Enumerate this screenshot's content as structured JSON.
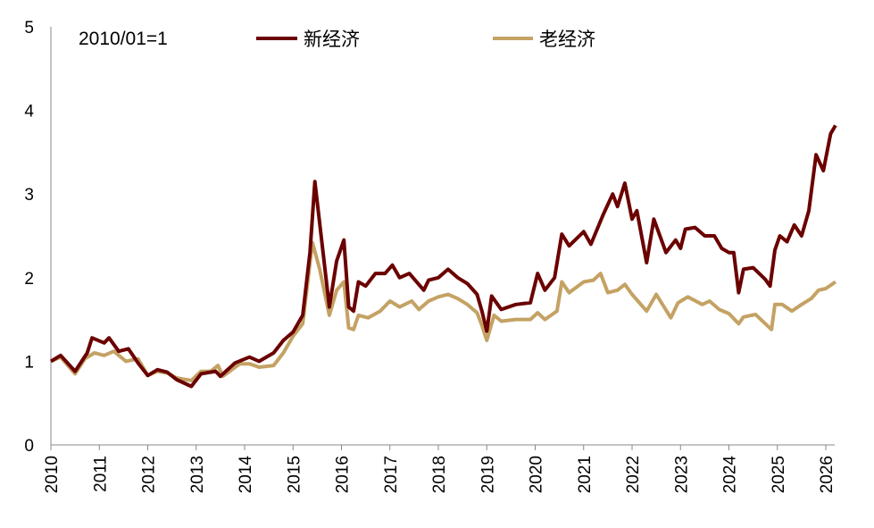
{
  "chart_data": {
    "type": "line",
    "title": "",
    "annotation": "2010/01=1",
    "xlabel": "",
    "ylabel": "",
    "xlim": [
      2010,
      2026.2
    ],
    "ylim": [
      0,
      5
    ],
    "yticks": [
      0,
      1,
      2,
      3,
      4,
      5
    ],
    "xticks": [
      "2010",
      "2011",
      "2012",
      "2013",
      "2014",
      "2015",
      "2016",
      "2017",
      "2018",
      "2019",
      "2020",
      "2021",
      "2022",
      "2023",
      "2024",
      "2025",
      "2026"
    ],
    "grid": false,
    "legend_position": "top",
    "series": [
      {
        "name": "新经济",
        "color": "#6b0000",
        "x": [
          2010.0,
          2010.2,
          2010.5,
          2010.75,
          2010.85,
          2011.1,
          2011.2,
          2011.4,
          2011.6,
          2011.8,
          2012.0,
          2012.2,
          2012.4,
          2012.6,
          2012.9,
          2013.1,
          2013.4,
          2013.5,
          2013.8,
          2014.1,
          2014.3,
          2014.6,
          2014.8,
          2015.0,
          2015.2,
          2015.35,
          2015.45,
          2015.6,
          2015.75,
          2015.9,
          2016.05,
          2016.15,
          2016.25,
          2016.35,
          2016.5,
          2016.7,
          2016.9,
          2017.05,
          2017.2,
          2017.4,
          2017.7,
          2017.8,
          2018.0,
          2018.2,
          2018.4,
          2018.6,
          2018.8,
          2018.9,
          2019.0,
          2019.1,
          2019.3,
          2019.6,
          2019.9,
          2020.05,
          2020.2,
          2020.4,
          2020.55,
          2020.7,
          2021.0,
          2021.15,
          2021.4,
          2021.6,
          2021.7,
          2021.85,
          2022.0,
          2022.1,
          2022.3,
          2022.45,
          2022.7,
          2022.9,
          2023.0,
          2023.1,
          2023.3,
          2023.5,
          2023.7,
          2023.85,
          2024.0,
          2024.1,
          2024.2,
          2024.3,
          2024.5,
          2024.75,
          2024.85,
          2024.95,
          2025.05,
          2025.2,
          2025.35,
          2025.5,
          2025.65,
          2025.8,
          2025.95,
          2026.1,
          2026.2
        ],
        "y": [
          1.0,
          1.07,
          0.88,
          1.1,
          1.28,
          1.22,
          1.28,
          1.12,
          1.15,
          0.98,
          0.83,
          0.9,
          0.87,
          0.78,
          0.7,
          0.85,
          0.88,
          0.82,
          0.98,
          1.05,
          1.0,
          1.1,
          1.25,
          1.35,
          1.55,
          2.3,
          3.15,
          2.4,
          1.65,
          2.2,
          2.45,
          1.65,
          1.6,
          1.95,
          1.9,
          2.05,
          2.05,
          2.15,
          2.0,
          2.05,
          1.85,
          1.97,
          2.0,
          2.1,
          2.0,
          1.93,
          1.8,
          1.6,
          1.36,
          1.78,
          1.62,
          1.68,
          1.7,
          2.05,
          1.85,
          2.0,
          2.52,
          2.38,
          2.55,
          2.4,
          2.75,
          3.0,
          2.85,
          3.13,
          2.7,
          2.8,
          2.18,
          2.7,
          2.3,
          2.45,
          2.35,
          2.58,
          2.6,
          2.5,
          2.5,
          2.35,
          2.3,
          2.3,
          1.82,
          2.1,
          2.12,
          1.98,
          1.9,
          2.33,
          2.5,
          2.43,
          2.63,
          2.5,
          2.8,
          3.47,
          3.28,
          3.72,
          3.82
        ]
      },
      {
        "name": "老经济",
        "color": "#c4a264",
        "x": [
          2010.0,
          2010.2,
          2010.5,
          2010.7,
          2010.9,
          2011.1,
          2011.3,
          2011.55,
          2011.8,
          2012.0,
          2012.2,
          2012.4,
          2012.6,
          2012.9,
          2013.1,
          2013.3,
          2013.45,
          2013.55,
          2013.9,
          2014.1,
          2014.3,
          2014.6,
          2014.8,
          2015.0,
          2015.2,
          2015.4,
          2015.55,
          2015.75,
          2015.9,
          2016.05,
          2016.15,
          2016.25,
          2016.35,
          2016.55,
          2016.8,
          2017.0,
          2017.2,
          2017.45,
          2017.6,
          2017.8,
          2018.0,
          2018.2,
          2018.4,
          2018.6,
          2018.8,
          2018.9,
          2019.0,
          2019.15,
          2019.3,
          2019.6,
          2019.9,
          2020.05,
          2020.2,
          2020.45,
          2020.55,
          2020.7,
          2021.0,
          2021.2,
          2021.35,
          2021.5,
          2021.7,
          2021.85,
          2022.0,
          2022.3,
          2022.5,
          2022.8,
          2022.95,
          2023.15,
          2023.45,
          2023.6,
          2023.8,
          2024.0,
          2024.2,
          2024.3,
          2024.55,
          2024.75,
          2024.88,
          2024.95,
          2025.1,
          2025.3,
          2025.5,
          2025.7,
          2025.85,
          2026.0,
          2026.2
        ],
        "y": [
          1.0,
          1.05,
          0.85,
          1.03,
          1.1,
          1.07,
          1.12,
          1.0,
          1.03,
          0.83,
          0.88,
          0.86,
          0.8,
          0.77,
          0.88,
          0.88,
          0.95,
          0.82,
          0.97,
          0.97,
          0.93,
          0.95,
          1.1,
          1.3,
          1.45,
          2.42,
          2.1,
          1.55,
          1.85,
          1.95,
          1.4,
          1.38,
          1.55,
          1.52,
          1.6,
          1.72,
          1.65,
          1.72,
          1.62,
          1.72,
          1.77,
          1.8,
          1.75,
          1.68,
          1.58,
          1.43,
          1.25,
          1.55,
          1.48,
          1.5,
          1.5,
          1.58,
          1.5,
          1.6,
          1.95,
          1.82,
          1.95,
          1.97,
          2.05,
          1.82,
          1.85,
          1.92,
          1.8,
          1.6,
          1.8,
          1.52,
          1.7,
          1.77,
          1.68,
          1.72,
          1.62,
          1.57,
          1.45,
          1.53,
          1.56,
          1.45,
          1.38,
          1.68,
          1.68,
          1.6,
          1.68,
          1.75,
          1.85,
          1.87,
          1.95
        ]
      }
    ]
  }
}
